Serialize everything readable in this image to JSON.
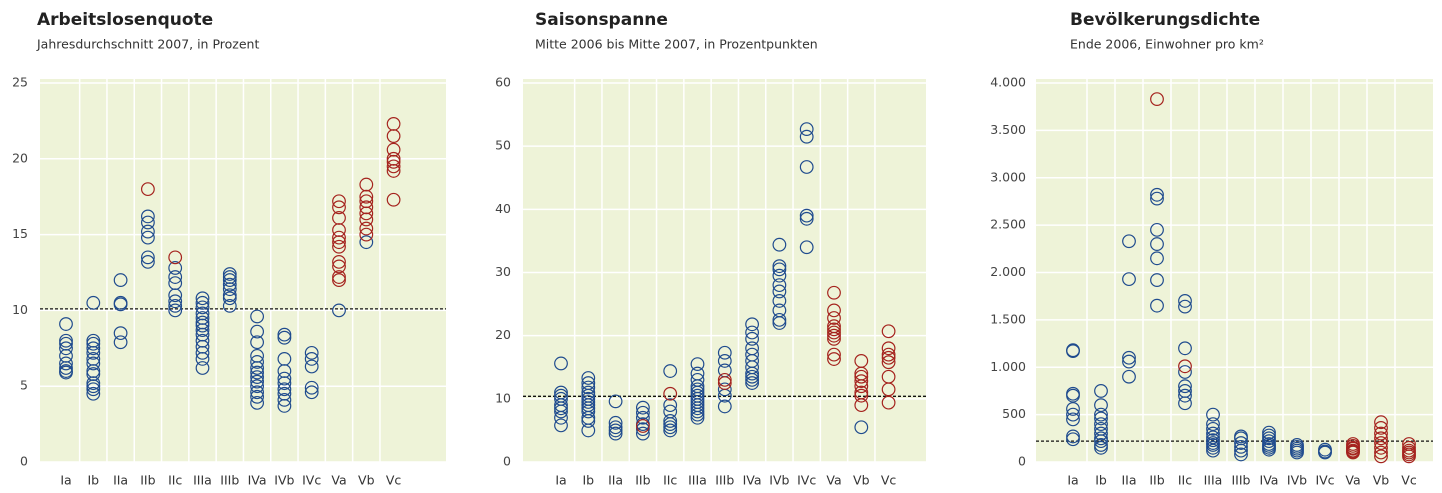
{
  "chart_data": [
    {
      "type": "strip",
      "title": "Arbeitslosenquote",
      "subtitle": "Jahresdurchschnitt 2007, in Prozent",
      "categories": [
        "Ia",
        "Ib",
        "IIa",
        "IIb",
        "IIc",
        "IIIa",
        "IIIb",
        "IVa",
        "IVb",
        "IVc",
        "Va",
        "Vb",
        "Vc"
      ],
      "ylim": [
        0,
        25
      ],
      "yticks": [
        0,
        5,
        10,
        15,
        20,
        25
      ],
      "reference": 10.1,
      "grid": true,
      "series": [
        {
          "color": "#1f4b8e",
          "values": [
            [
              9.1,
              8.0,
              7.8,
              7.5,
              7.0,
              6.5,
              6.2,
              6.0,
              5.9
            ],
            [
              10.5,
              8.0,
              7.8,
              7.5,
              7.2,
              6.8,
              6.5,
              6.0,
              5.8,
              5.2,
              5.0,
              4.8,
              4.5
            ],
            [
              12.0,
              10.5,
              10.4,
              8.5,
              7.9
            ],
            [
              16.2,
              15.8,
              15.2,
              14.8,
              13.5,
              13.2
            ],
            [
              12.8,
              12.2,
              11.8,
              11.0,
              10.6,
              10.3,
              10.0
            ],
            [
              10.8,
              10.5,
              10.2,
              9.8,
              9.5,
              9.2,
              9.0,
              8.7,
              8.4,
              8.0,
              7.6,
              7.2,
              6.8,
              6.2
            ],
            [
              12.4,
              12.2,
              12.0,
              11.7,
              11.4,
              11.0,
              10.8,
              10.3
            ],
            [
              9.6,
              8.6,
              7.9,
              7.0,
              6.6,
              6.2,
              5.9,
              5.6,
              5.3,
              5.0,
              4.6,
              4.3,
              3.9
            ],
            [
              8.4,
              8.2,
              6.8,
              6.0,
              5.5,
              5.2,
              4.8,
              4.5,
              4.1,
              3.7
            ],
            [
              7.2,
              6.8,
              6.3,
              4.9,
              4.6
            ],
            [
              10.0
            ],
            [
              14.5
            ],
            []
          ]
        },
        {
          "color": "#a5231e",
          "values": [
            [],
            [],
            [],
            [
              18.0
            ],
            [
              13.5
            ],
            [],
            [],
            [],
            [],
            [],
            [
              17.2,
              16.8,
              16.1,
              15.3,
              14.8,
              14.5,
              14.2,
              13.2,
              12.9,
              12.2,
              12.0
            ],
            [
              18.3,
              17.5,
              17.2,
              16.8,
              16.4,
              16.0,
              15.4,
              15.0
            ],
            [
              22.3,
              21.5,
              20.6,
              20.0,
              19.8,
              19.5,
              19.2,
              17.3
            ]
          ]
        }
      ]
    },
    {
      "type": "strip",
      "title": "Saisonspanne",
      "subtitle": "Mitte 2006 bis Mitte 2007, in Prozentpunkten",
      "categories": [
        "Ia",
        "Ib",
        "IIa",
        "IIb",
        "IIc",
        "IIIa",
        "IIIb",
        "IVa",
        "IVb",
        "IVc",
        "Va",
        "Vb",
        "Vc"
      ],
      "ylim": [
        0,
        60
      ],
      "yticks": [
        0,
        10,
        20,
        30,
        40,
        50,
        60
      ],
      "reference": 10.4,
      "grid": true,
      "series": [
        {
          "color": "#1f4b8e",
          "values": [
            [
              15.6,
              11.0,
              10.5,
              10.0,
              9.0,
              8.5,
              8.0,
              7.0,
              5.8
            ],
            [
              13.3,
              12.5,
              11.8,
              11.0,
              10.5,
              10.0,
              9.5,
              9.0,
              8.5,
              8.0,
              7.0,
              6.5,
              5.0
            ],
            [
              9.6,
              6.2,
              5.5,
              5.0,
              4.5
            ],
            [
              8.6,
              7.8,
              7.0,
              6.0,
              5.2,
              4.5
            ],
            [
              14.4,
              9.0,
              8.0,
              6.5,
              6.0,
              5.5,
              5.0
            ],
            [
              15.5,
              14.0,
              13.0,
              12.0,
              11.5,
              11.0,
              10.5,
              10.0,
              9.5,
              9.0,
              8.5,
              8.0,
              7.5,
              7.0
            ],
            [
              17.3,
              16.0,
              14.5,
              11.5,
              10.5,
              8.8
            ],
            [
              21.8,
              20.5,
              19.5,
              18.0,
              17.0,
              16.0,
              15.0,
              14.0,
              13.5,
              13.0,
              12.5
            ],
            [
              34.4,
              31.0,
              30.5,
              29.5,
              28.0,
              27.0,
              25.5,
              24.0,
              22.5,
              22.0
            ],
            [
              52.7,
              51.5,
              46.7,
              39.0,
              38.5,
              34.0
            ],
            [],
            [
              5.5
            ],
            []
          ]
        },
        {
          "color": "#a5231e",
          "values": [
            [],
            [],
            [],
            [
              5.7
            ],
            [
              10.8
            ],
            [],
            [
              13.0,
              12.5
            ],
            [],
            [],
            [],
            [
              26.8,
              24.0,
              22.8,
              21.5,
              21.0,
              20.5,
              20.0,
              19.5,
              17.0,
              16.3
            ],
            [
              16.0,
              14.0,
              13.5,
              12.8,
              12.0,
              11.0,
              10.5,
              9.0
            ],
            [
              20.7,
              18.0,
              17.0,
              16.5,
              15.8,
              13.5,
              11.5,
              9.4
            ]
          ]
        }
      ]
    },
    {
      "type": "strip",
      "title": "Bevölkerungsdichte",
      "subtitle": "Ende 2006, Einwohner pro km²",
      "categories": [
        "Ia",
        "Ib",
        "IIa",
        "IIb",
        "IIc",
        "IIIa",
        "IIIb",
        "IVa",
        "IVb",
        "IVc",
        "Va",
        "Vb",
        "Vc"
      ],
      "ylim": [
        0,
        4000
      ],
      "yticks": [
        0,
        500,
        {
          "value": 1000,
          "label": "1.000"
        },
        {
          "value": 1500,
          "label": "1.500"
        },
        {
          "value": 2000,
          "label": "2.000"
        },
        {
          "value": 2500,
          "label": "2.500"
        },
        {
          "value": 3000,
          "label": "3.000"
        },
        {
          "value": 3500,
          "label": "3.500"
        },
        {
          "value": 4000,
          "label": "4.000"
        }
      ],
      "reference": 220,
      "grid": true,
      "series": [
        {
          "color": "#1f4b8e",
          "values": [
            [
              1180,
              1170,
              720,
              700,
              560,
              500,
              450,
              270,
              240
            ],
            [
              750,
              600,
              500,
              460,
              400,
              350,
              300,
              250,
              220,
              180,
              150
            ],
            [
              2330,
              1930,
              1100,
              1060,
              900
            ],
            [
              2820,
              2780,
              2450,
              2300,
              2150,
              1920,
              1650
            ],
            [
              1700,
              1640,
              1200,
              950,
              800,
              750,
              700,
              620
            ],
            [
              500,
              400,
              350,
              300,
              260,
              230,
              200,
              180,
              150,
              120
            ],
            [
              270,
              250,
              200,
              160,
              120,
              80
            ],
            [
              310,
              280,
              250,
              220,
              190,
              170,
              150,
              130
            ],
            [
              180,
              160,
              140,
              120,
              100
            ],
            [
              130,
              110,
              100
            ],
            [],
            [],
            []
          ]
        },
        {
          "color": "#a5231e",
          "values": [
            [],
            [],
            [],
            [
              3830
            ],
            [
              1010
            ],
            [],
            [],
            [],
            [],
            [],
            [
              190,
              170,
              150,
              140,
              120,
              110,
              100
            ],
            [
              420,
              360,
              300,
              250,
              200,
              150,
              100,
              60
            ],
            [
              190,
              150,
              120,
              100,
              80,
              60
            ]
          ]
        }
      ]
    }
  ]
}
